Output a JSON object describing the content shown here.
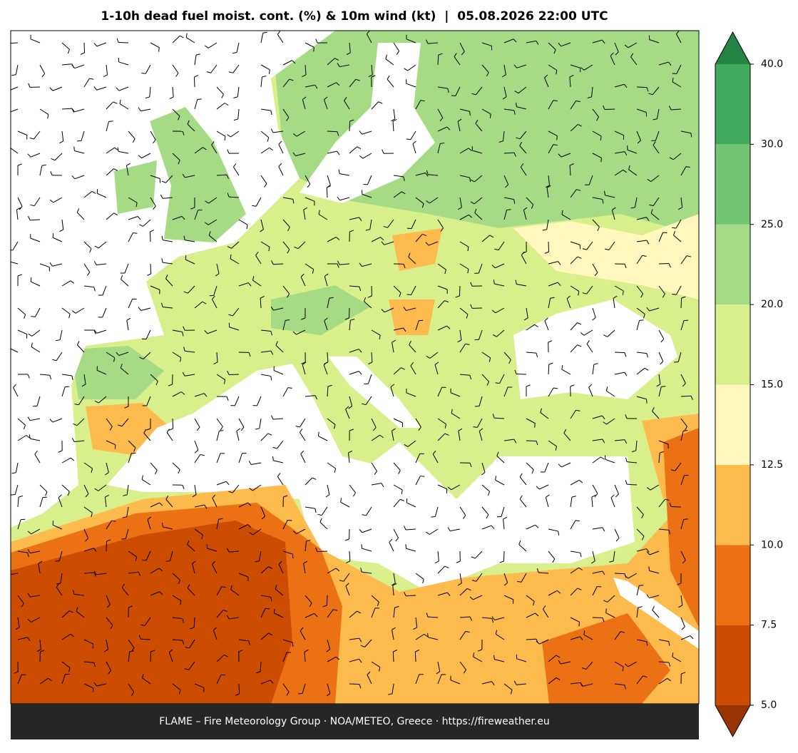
{
  "title": "1-10h dead fuel moist. cont. (%) & 10m wind (kt)  |  05.08.2026 22:00 UTC",
  "footer": "FLAME – Fire Meteorology Group · NOA/METEO, Greece · https://fireweather.eu",
  "colorbar": {
    "ticks": [
      {
        "value": 5,
        "label": "5.0"
      },
      7.5,
      {
        "value": 10,
        "label": "10.0"
      },
      12.5,
      {
        "value": 15,
        "label": "15.0"
      },
      {
        "value": 20,
        "label": "20.0"
      },
      {
        "value": 25,
        "label": "25.0"
      },
      {
        "value": 30,
        "label": "30.0"
      },
      {
        "value": 40,
        "label": "40.0"
      }
    ],
    "colors": [
      "#cc4c02",
      "#ec7014",
      "#fdbb4d",
      "#fff7bc",
      "#d9ef8b",
      "#a6db86",
      "#74c476",
      "#41ab5d"
    ],
    "under_color": "#993404",
    "over_color": "#238443"
  }
}
